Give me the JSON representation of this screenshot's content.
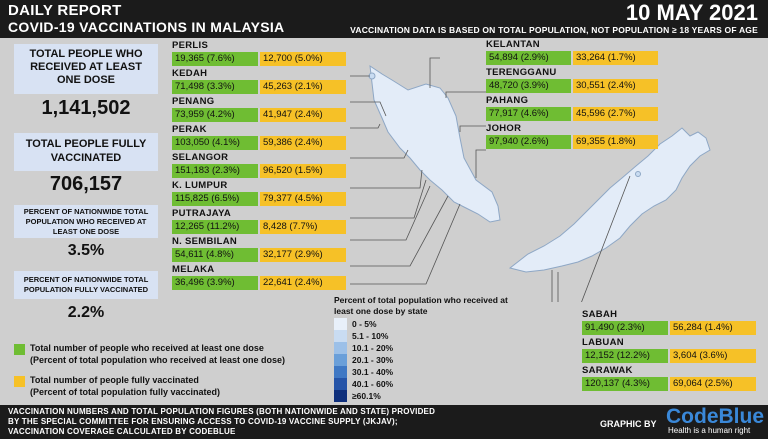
{
  "header": {
    "title_line1": "DAILY REPORT",
    "title_line2": "COVID-19 VACCINATIONS IN MALAYSIA",
    "date": "10 MAY 2021",
    "note": "VACCINATION DATA IS BASED ON TOTAL POPULATION, NOT POPULATION ≥ 18 YEARS OF AGE"
  },
  "stats": {
    "at_least_one_label": "TOTAL PEOPLE WHO RECEIVED AT LEAST ONE DOSE",
    "at_least_one_value": "1,141,502",
    "fully_label": "TOTAL PEOPLE FULLY VACCINATED",
    "fully_value": "706,157",
    "pct_one_label": "PERCENT OF NATIONWIDE TOTAL POPULATION WHO RECEIVED AT LEAST ONE DOSE",
    "pct_one_value": "3.5%",
    "pct_full_label": "PERCENT OF NATIONWIDE TOTAL POPULATION FULLY VACCINATED",
    "pct_full_value": "2.2%"
  },
  "chart_data": {
    "type": "table",
    "columns": [
      "Total number of people who received at least one dose (Percent of total population who received at least one dose)",
      "Total number of people fully vaccinated (Percent of total population fully vaccinated)"
    ],
    "rows": [
      {
        "state": "PERLIS",
        "one_dose": "19,365 (7.6%)",
        "fully": "12,700 (5.0%)"
      },
      {
        "state": "KEDAH",
        "one_dose": "71,498 (3.3%)",
        "fully": "45,263 (2.1%)"
      },
      {
        "state": "PENANG",
        "one_dose": "73,959 (4.2%)",
        "fully": "41,947 (2.4%)"
      },
      {
        "state": "PERAK",
        "one_dose": "103,050 (4.1%)",
        "fully": "59,386 (2.4%)"
      },
      {
        "state": "SELANGOR",
        "one_dose": "151,183 (2.3%)",
        "fully": "96,520 (1.5%)"
      },
      {
        "state": "K. LUMPUR",
        "one_dose": "115,825 (6.5%)",
        "fully": "79,377 (4.5%)"
      },
      {
        "state": "PUTRAJAYA",
        "one_dose": "12,265 (11.2%)",
        "fully": "8,428 (7.7%)"
      },
      {
        "state": "N. SEMBILAN",
        "one_dose": "54,611 (4.8%)",
        "fully": "32,177 (2.9%)"
      },
      {
        "state": "MELAKA",
        "one_dose": "36,496 (3.9%)",
        "fully": "22,641 (2.4%)"
      },
      {
        "state": "KELANTAN",
        "one_dose": "54,894 (2.9%)",
        "fully": "33,264 (1.7%)"
      },
      {
        "state": "TERENGGANU",
        "one_dose": "48,720 (3.9%)",
        "fully": "30,551 (2.4%)"
      },
      {
        "state": "PAHANG",
        "one_dose": "77,917 (4.6%)",
        "fully": "45,596 (2.7%)"
      },
      {
        "state": "JOHOR",
        "one_dose": "97,940 (2.6%)",
        "fully": "69,355 (1.8%)"
      },
      {
        "state": "SABAH",
        "one_dose": "91,490 (2.3%)",
        "fully": "56,284 (1.4%)"
      },
      {
        "state": "LABUAN",
        "one_dose": "12,152 (12.2%)",
        "fully": "3,604 (3.6%)"
      },
      {
        "state": "SARAWAK",
        "one_dose": "120,137 (4.3%)",
        "fully": "69,064 (2.5%)"
      }
    ],
    "map_legend": {
      "title": "Percent of total population who received at least one dose by state",
      "bins": [
        "0 - 5%",
        "5.1 - 10%",
        "10.1 - 20%",
        "20.1 - 30%",
        "30.1 - 40%",
        "40.1 - 60%",
        "≥60.1%"
      ],
      "colors": [
        "#e8f0fa",
        "#c9dcf2",
        "#9cc0e8",
        "#6a9fd9",
        "#3f78c4",
        "#2554a8",
        "#0e2f7c"
      ]
    }
  },
  "key": {
    "green_line1": "Total number of people who received at least one dose",
    "green_line2": "(Percent of total population who received at least one dose)",
    "yellow_line1": "Total number of people fully vaccinated",
    "yellow_line2": "(Percent of total population fully vaccinated)"
  },
  "colors": {
    "green": "#6fbd33",
    "yellow": "#f6c127",
    "stat_box": "#d8e2f3",
    "brand": "#3a88d8"
  },
  "footer": {
    "line1": "VACCINATION NUMBERS AND TOTAL POPULATION FIGURES (BOTH NATIONWIDE AND STATE) PROVIDED",
    "line2": "BY THE SPECIAL COMMITTEE FOR ENSURING ACCESS TO COVID-19 VACCINE SUPPLY (JKJAV);",
    "line3": "VACCINATION COVERAGE CALCULATED BY CODEBLUE",
    "graphic_by": "GRAPHIC BY",
    "brand": "CodeBlue",
    "tagline": "Health is a human right"
  }
}
